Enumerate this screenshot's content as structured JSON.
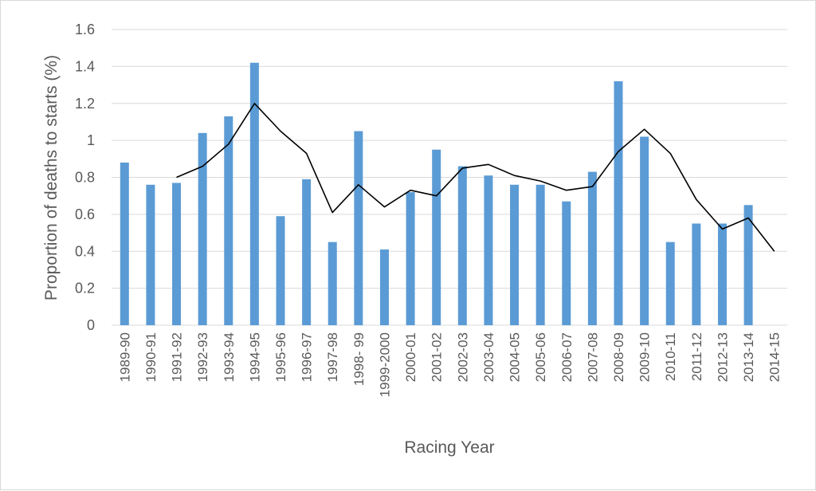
{
  "chart_data": {
    "type": "bar",
    "xlabel": "Racing Year",
    "ylabel": "Proportion of deaths to starts (%)",
    "ylim": [
      0,
      1.6
    ],
    "y_ticks": [
      "0",
      "0.2",
      "0.4",
      "0.6",
      "0.8",
      "1",
      "1.2",
      "1.4",
      "1.6"
    ],
    "y_tick_values": [
      0,
      0.2,
      0.4,
      0.6,
      0.8,
      1.0,
      1.2,
      1.4,
      1.6
    ],
    "grid": true,
    "legend": "none",
    "categories": [
      "1989-90",
      "1990-91",
      "1991-92",
      "1992-93",
      "1993-94",
      "1994-95",
      "1995-96",
      "1996-97",
      "1997-98",
      "1998- 99",
      "1999-2000",
      "2000-01",
      "2001-02",
      "2002-03",
      "2003-04",
      "2004-05",
      "2005-06",
      "2006-07",
      "2007-08",
      "2008-09",
      "2009-10",
      "2010-11",
      "2011-12",
      "2012-13",
      "2013-14",
      "2014-15"
    ],
    "series": [
      {
        "type": "bar",
        "color": "#5b9bd5",
        "values": [
          0.88,
          0.76,
          0.77,
          1.04,
          1.13,
          1.42,
          0.59,
          0.79,
          0.45,
          1.05,
          0.41,
          0.72,
          0.95,
          0.86,
          0.81,
          0.76,
          0.76,
          0.67,
          0.83,
          1.32,
          1.02,
          0.45,
          0.55,
          0.55,
          0.65,
          null
        ]
      },
      {
        "type": "line",
        "color": "#000000",
        "values": [
          null,
          null,
          0.8,
          0.86,
          0.98,
          1.2,
          1.05,
          0.93,
          0.61,
          0.76,
          0.64,
          0.73,
          0.7,
          0.85,
          0.87,
          0.81,
          0.78,
          0.73,
          0.75,
          0.94,
          1.06,
          0.93,
          0.68,
          0.52,
          0.58,
          0.4
        ]
      }
    ]
  }
}
